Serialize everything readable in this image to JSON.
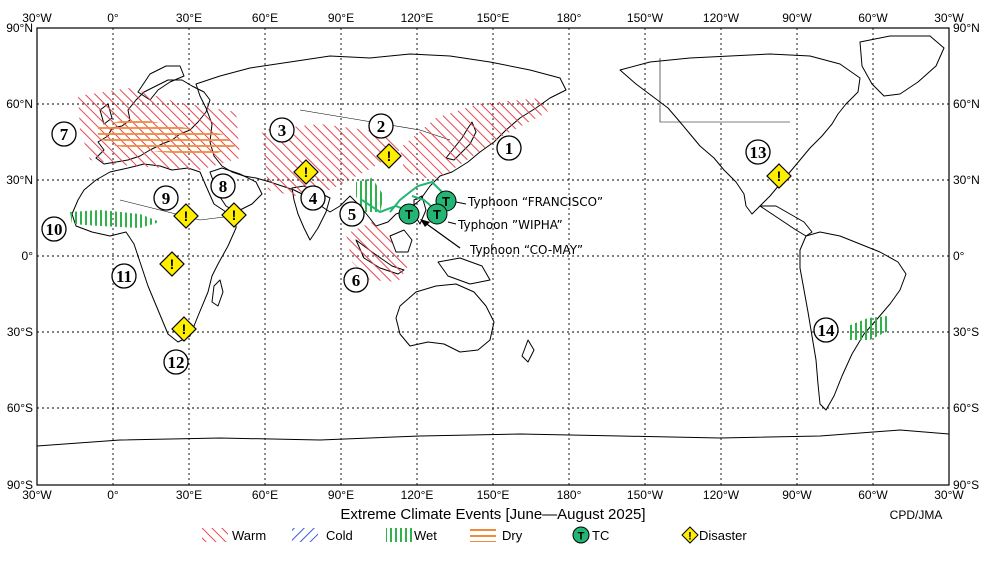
{
  "title": "Extreme Climate Events [June—August 2025]",
  "credit": "CPD/JMA",
  "axes": {
    "lon_labels": [
      "30°W",
      "0°",
      "30°E",
      "60°E",
      "90°E",
      "120°E",
      "150°E",
      "180°",
      "150°W",
      "120°W",
      "90°W",
      "60°W",
      "30°W"
    ],
    "lat_labels": [
      "90°N",
      "60°N",
      "30°N",
      "0°",
      "30°S",
      "60°S",
      "90°S"
    ]
  },
  "event_numbers": [
    "1",
    "2",
    "3",
    "4",
    "5",
    "6",
    "7",
    "8",
    "9",
    "10",
    "11",
    "12",
    "13",
    "14"
  ],
  "typhoons": [
    "Typhoon “FRANCISCO”",
    "Typhoon ”WIPHA”",
    "Typhoon “CO-MAY”"
  ],
  "tc_symbol": "T",
  "disaster_symbol": "!",
  "legend": [
    {
      "label": "Warm",
      "color": "#e8474f"
    },
    {
      "label": "Cold",
      "color": "#3b5bdb"
    },
    {
      "label": "Wet",
      "color": "#2fb34a"
    },
    {
      "label": "Dry",
      "color": "#f08a3c"
    },
    {
      "label": "TC",
      "color": "#22b573"
    },
    {
      "label": "Disaster",
      "color": "#ffee00"
    }
  ],
  "icons": [
    "typhoon-icon",
    "disaster-warning-icon"
  ]
}
